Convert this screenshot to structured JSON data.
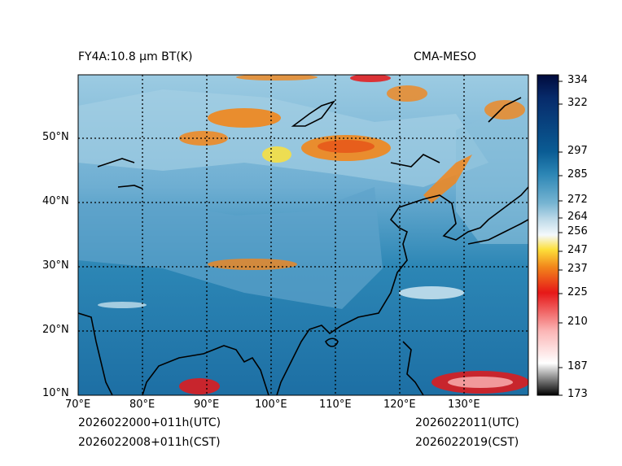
{
  "title_left": "FY4A:10.8 µm BT(K)",
  "title_right": "CMA-MESO",
  "footer": {
    "init_utc": "2026022000+011h(UTC)",
    "init_cst": "2026022008+011h(CST)",
    "valid_utc": "2026022011(UTC)",
    "valid_cst": "2026022019(CST)"
  },
  "map": {
    "lon_range": [
      70,
      140
    ],
    "lat_range": [
      10,
      60
    ],
    "lon_ticks": [
      "70°E",
      "80°E",
      "90°E",
      "100°E",
      "110°E",
      "120°E",
      "130°E"
    ],
    "lat_ticks": [
      "10°N",
      "20°N",
      "30°N",
      "40°N",
      "50°N"
    ]
  },
  "colorbar": {
    "ticks": [
      "334",
      "322",
      "297",
      "285",
      "272",
      "264",
      "256",
      "247",
      "237",
      "225",
      "210",
      "187",
      "173"
    ],
    "tick_values": [
      334,
      322,
      297,
      285,
      272,
      264,
      256,
      247,
      237,
      225,
      210,
      187,
      173
    ],
    "colors": {
      "bt_334": "#000a3c",
      "bt_322": "#072a6a",
      "bt_297": "#0a5c94",
      "bt_285": "#2c86b5",
      "bt_272": "#76b4d2",
      "bt_264": "#bcd9e8",
      "bt_256": "#f4f9fc",
      "bt_247": "#fde03a",
      "bt_237": "#f2861b",
      "bt_225": "#e61818",
      "bt_210": "#fbb6b6",
      "bt_187": "#9a9a9a",
      "bt_173": "#000000"
    }
  }
}
